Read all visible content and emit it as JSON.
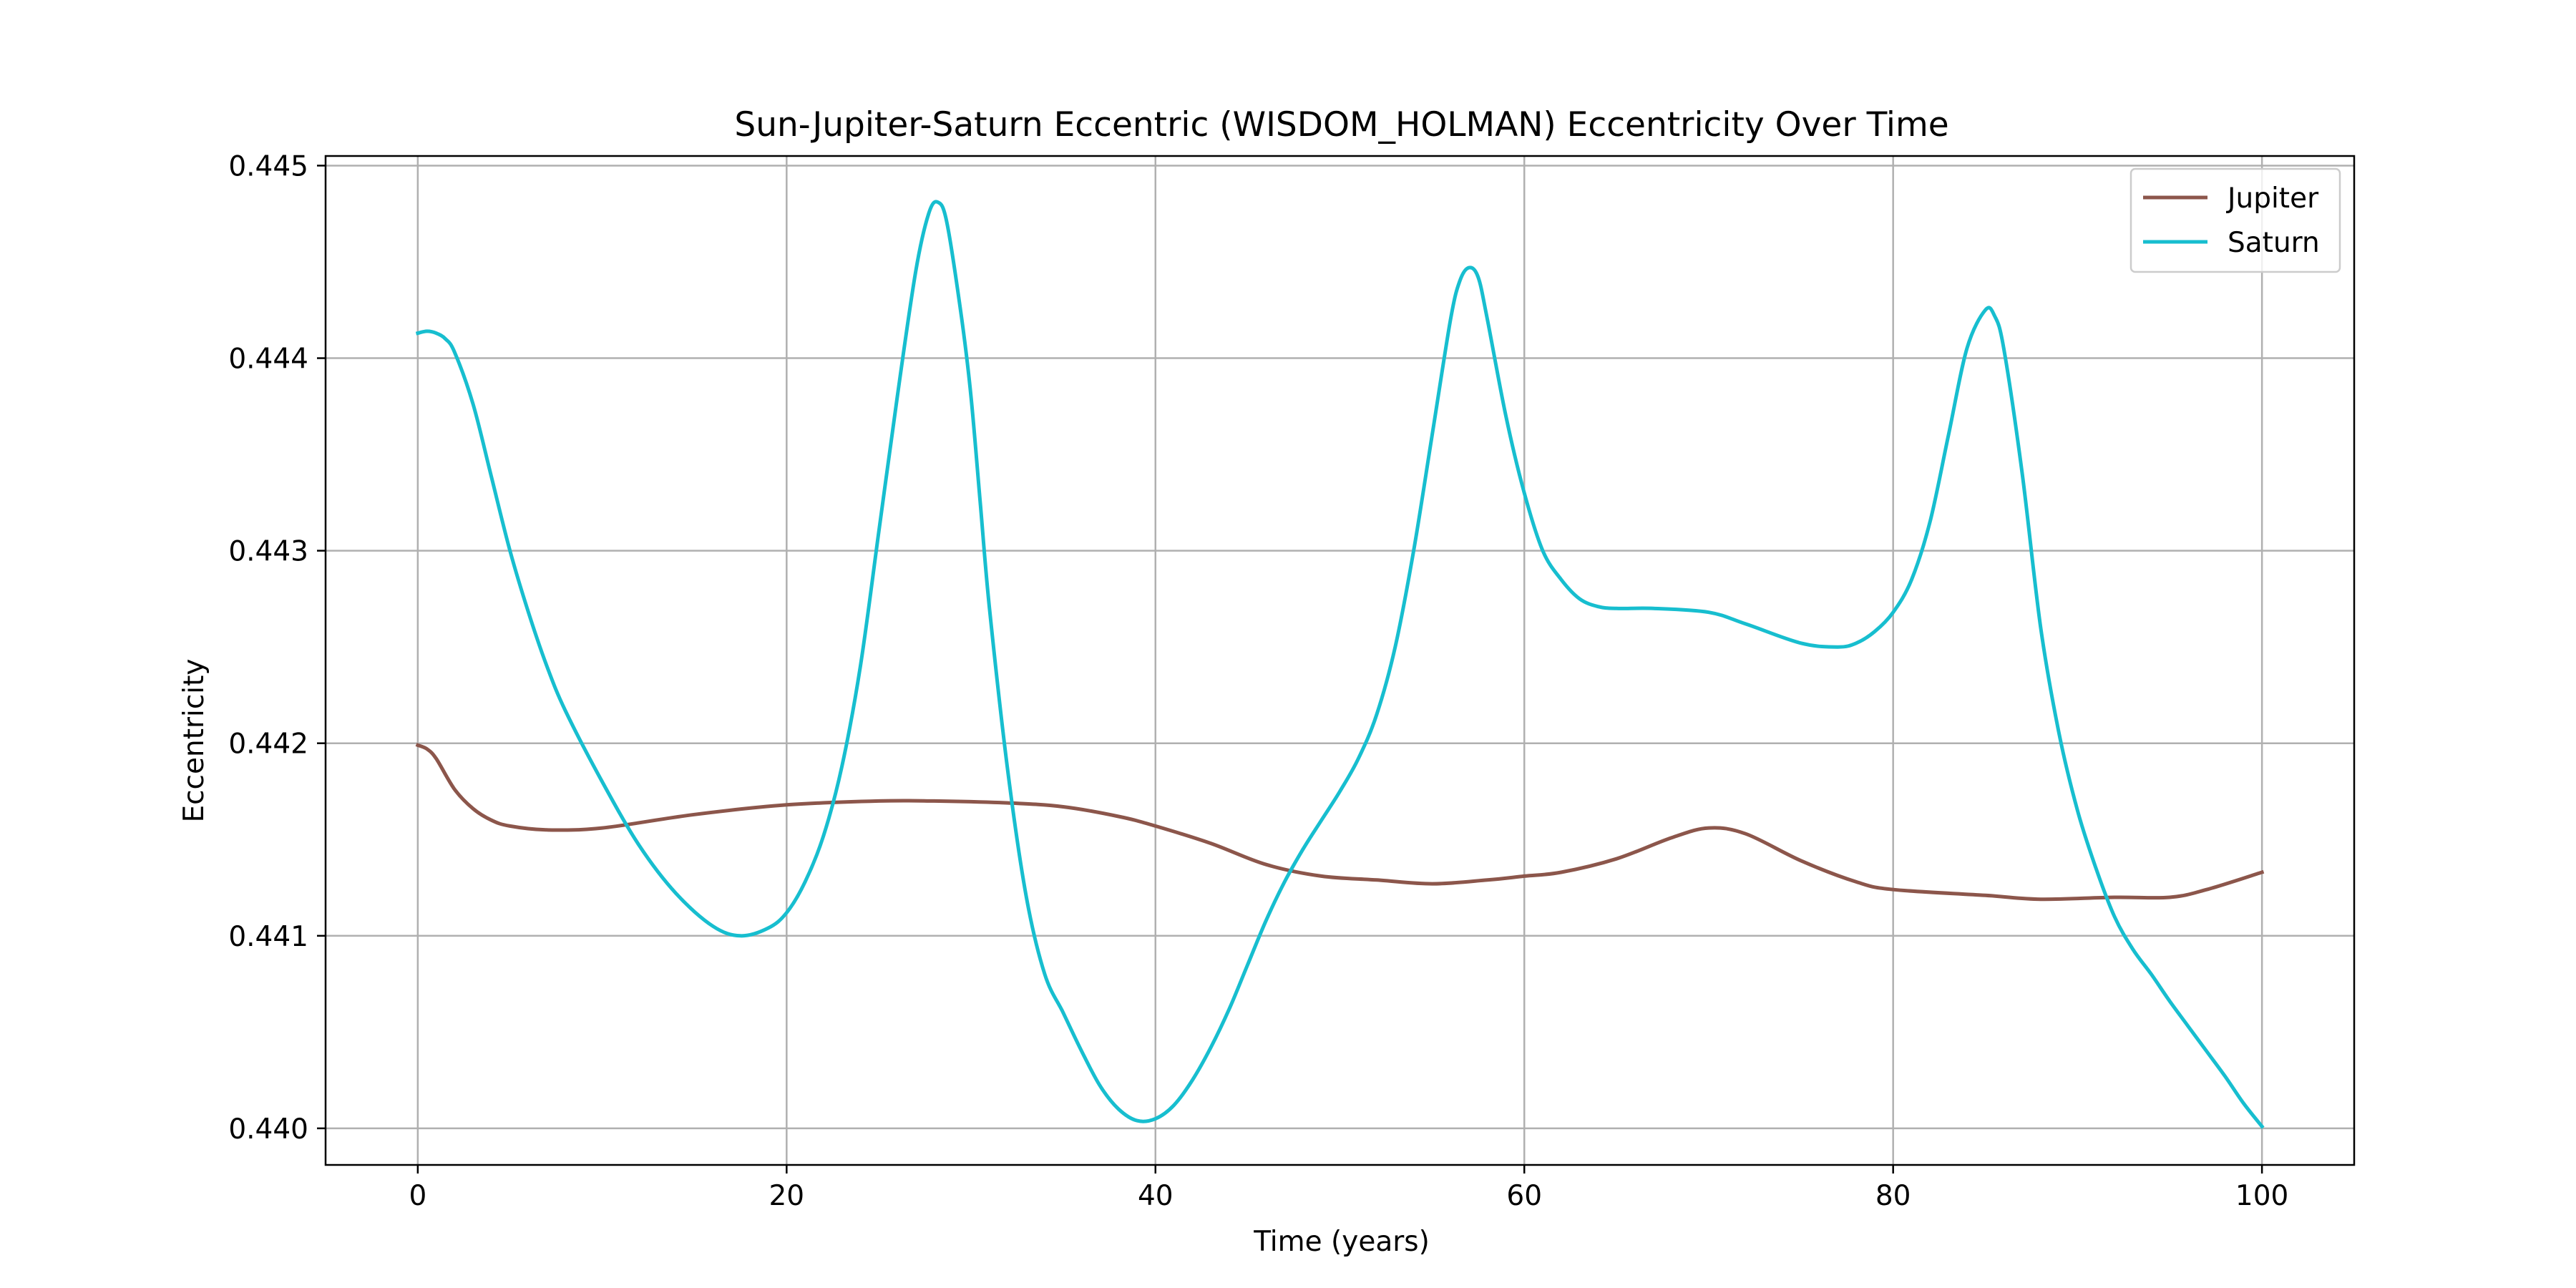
{
  "chart_data": {
    "type": "line",
    "title": "Sun-Jupiter-Saturn Eccentric (WISDOM_HOLMAN) Eccentricity Over Time",
    "xlabel": "Time (years)",
    "ylabel": "Eccentricity",
    "xlim": [
      -5,
      105
    ],
    "ylim": [
      0.43981,
      0.44505
    ],
    "xticks": [
      0,
      20,
      40,
      60,
      80,
      100
    ],
    "yticks": [
      0.44,
      0.441,
      0.442,
      0.443,
      0.444,
      0.445
    ],
    "xtick_labels": [
      "0",
      "20",
      "40",
      "60",
      "80",
      "100"
    ],
    "ytick_labels": [
      "0.440",
      "0.441",
      "0.442",
      "0.443",
      "0.444",
      "0.445"
    ],
    "grid": true,
    "legend_position": "top-right",
    "series": [
      {
        "name": "Jupiter",
        "color": "#8c564b",
        "points": [
          [
            0,
            0.44199
          ],
          [
            0.5,
            0.44197
          ],
          [
            1,
            0.44192
          ],
          [
            2,
            0.44176
          ],
          [
            3,
            0.44166
          ],
          [
            4,
            0.4416
          ],
          [
            5,
            0.44157
          ],
          [
            7,
            0.44155
          ],
          [
            10,
            0.44156
          ],
          [
            15,
            0.44163
          ],
          [
            20,
            0.44168
          ],
          [
            25,
            0.4417
          ],
          [
            28,
            0.4417
          ],
          [
            32,
            0.44169
          ],
          [
            35,
            0.44167
          ],
          [
            38,
            0.44162
          ],
          [
            40,
            0.44157
          ],
          [
            43,
            0.44148
          ],
          [
            46,
            0.44137
          ],
          [
            49,
            0.44131
          ],
          [
            52,
            0.44129
          ],
          [
            55,
            0.44127
          ],
          [
            58,
            0.44129
          ],
          [
            60,
            0.44131
          ],
          [
            62,
            0.44133
          ],
          [
            65,
            0.4414
          ],
          [
            68,
            0.44151
          ],
          [
            70,
            0.44156
          ],
          [
            72,
            0.44153
          ],
          [
            75,
            0.44139
          ],
          [
            78,
            0.44128
          ],
          [
            80,
            0.44124
          ],
          [
            85,
            0.44121
          ],
          [
            88,
            0.44119
          ],
          [
            92,
            0.4412
          ],
          [
            95,
            0.4412
          ],
          [
            97,
            0.44124
          ],
          [
            100,
            0.44133
          ]
        ]
      },
      {
        "name": "Saturn",
        "color": "#17becf",
        "points": [
          [
            0,
            0.44413
          ],
          [
            0.5,
            0.44414
          ],
          [
            1,
            0.44413
          ],
          [
            1.5,
            0.4441
          ],
          [
            2,
            0.44403
          ],
          [
            3,
            0.44376
          ],
          [
            4,
            0.44338
          ],
          [
            5,
            0.443
          ],
          [
            6,
            0.44268
          ],
          [
            7,
            0.4424
          ],
          [
            8,
            0.44217
          ],
          [
            10,
            0.4418
          ],
          [
            12,
            0.44147
          ],
          [
            14,
            0.44122
          ],
          [
            16,
            0.44105
          ],
          [
            17.5,
            0.441
          ],
          [
            19,
            0.44104
          ],
          [
            20,
            0.44112
          ],
          [
            21,
            0.44128
          ],
          [
            22,
            0.44152
          ],
          [
            23,
            0.44188
          ],
          [
            24,
            0.4424
          ],
          [
            25,
            0.4431
          ],
          [
            26,
            0.4438
          ],
          [
            27,
            0.44445
          ],
          [
            27.7,
            0.44475
          ],
          [
            28.2,
            0.44481
          ],
          [
            28.7,
            0.4447
          ],
          [
            29.5,
            0.4442
          ],
          [
            30,
            0.4438
          ],
          [
            30.5,
            0.44325
          ],
          [
            31,
            0.4427
          ],
          [
            32,
            0.44185
          ],
          [
            33,
            0.4412
          ],
          [
            34,
            0.4408
          ],
          [
            35,
            0.4406
          ],
          [
            36,
            0.4404
          ],
          [
            37,
            0.44022
          ],
          [
            38,
            0.4401
          ],
          [
            39,
            0.44004
          ],
          [
            40,
            0.44005
          ],
          [
            41,
            0.44012
          ],
          [
            42,
            0.44025
          ],
          [
            43,
            0.44042
          ],
          [
            44,
            0.44062
          ],
          [
            45,
            0.44085
          ],
          [
            46,
            0.44108
          ],
          [
            47,
            0.44128
          ],
          [
            48,
            0.44145
          ],
          [
            49,
            0.4416
          ],
          [
            50,
            0.44175
          ],
          [
            51,
            0.44192
          ],
          [
            52,
            0.44215
          ],
          [
            53,
            0.4425
          ],
          [
            54,
            0.443
          ],
          [
            55,
            0.4436
          ],
          [
            56,
            0.4442
          ],
          [
            56.5,
            0.4444
          ],
          [
            57,
            0.44447
          ],
          [
            57.5,
            0.44442
          ],
          [
            58,
            0.4442
          ],
          [
            59,
            0.4437
          ],
          [
            60,
            0.4433
          ],
          [
            61,
            0.443
          ],
          [
            62,
            0.44285
          ],
          [
            63,
            0.44275
          ],
          [
            64,
            0.44271
          ],
          [
            65,
            0.4427
          ],
          [
            67,
            0.4427
          ],
          [
            70,
            0.44268
          ],
          [
            72,
            0.44262
          ],
          [
            75,
            0.44252
          ],
          [
            77,
            0.4425
          ],
          [
            78,
            0.44252
          ],
          [
            79,
            0.44258
          ],
          [
            80,
            0.44268
          ],
          [
            81,
            0.44285
          ],
          [
            82,
            0.44315
          ],
          [
            83,
            0.4436
          ],
          [
            84,
            0.44405
          ],
          [
            85,
            0.44425
          ],
          [
            85.5,
            0.44422
          ],
          [
            86,
            0.44405
          ],
          [
            87,
            0.4434
          ],
          [
            88,
            0.4426
          ],
          [
            89,
            0.44205
          ],
          [
            90,
            0.44165
          ],
          [
            91,
            0.44135
          ],
          [
            92,
            0.4411
          ],
          [
            93,
            0.44093
          ],
          [
            94,
            0.4408
          ],
          [
            95,
            0.44066
          ],
          [
            96,
            0.44053
          ],
          [
            97,
            0.4404
          ],
          [
            98,
            0.44027
          ],
          [
            99,
            0.44013
          ],
          [
            100,
            0.44001
          ]
        ]
      }
    ]
  }
}
